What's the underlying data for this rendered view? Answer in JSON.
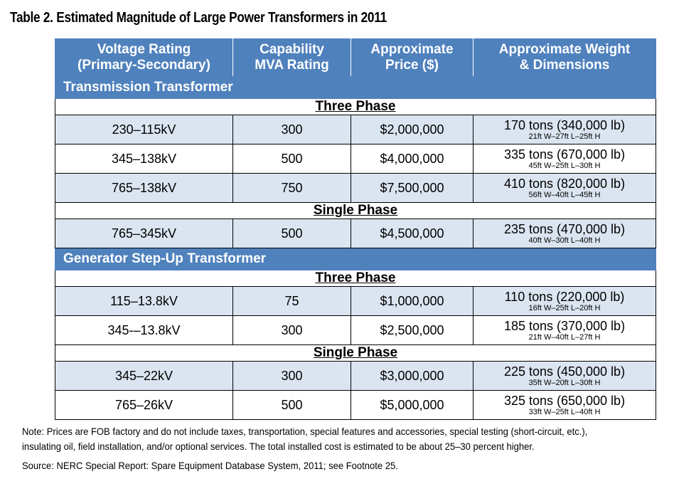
{
  "title": "Table 2. Estimated Magnitude of Large Power Transformers in 2011",
  "columns": [
    {
      "line1": "Voltage Rating",
      "line2": "(Primary-Secondary)"
    },
    {
      "line1": "Capability",
      "line2": "MVA Rating"
    },
    {
      "line1": "Approximate",
      "line2": "Price ($)"
    },
    {
      "line1": "Approximate Weight",
      "line2": "& Dimensions"
    }
  ],
  "sections": [
    {
      "name": "Transmission Transformer",
      "groups": [
        {
          "phase": "Three Phase",
          "rows": [
            {
              "voltage": "230–115kV",
              "mva": "300",
              "price": "$2,000,000",
              "weight": "170 tons (340,000 lb)",
              "dims": "21ft W–27ft L–25ft H"
            },
            {
              "voltage": "345–138kV",
              "mva": "500",
              "price": "$4,000,000",
              "weight": "335 tons (670,000 lb)",
              "dims": "45ft W–25ft L–30ft H"
            },
            {
              "voltage": "765–138kV",
              "mva": "750",
              "price": "$7,500,000",
              "weight": "410 tons (820,000 lb)",
              "dims": "56ft W–40ft L–45ft H"
            }
          ]
        },
        {
          "phase": "Single Phase",
          "rows": [
            {
              "voltage": "765–345kV",
              "mva": "500",
              "price": "$4,500,000",
              "weight": "235 tons (470,000 lb)",
              "dims": "40ft W–30ft L–40ft H"
            }
          ]
        }
      ]
    },
    {
      "name": "Generator Step-Up Transformer",
      "groups": [
        {
          "phase": "Three Phase",
          "rows": [
            {
              "voltage": "115–13.8kV",
              "mva": "75",
              "price": "$1,000,000",
              "weight": "110 tons (220,000 lb)",
              "dims": "16ft W–25ft L–20ft H"
            },
            {
              "voltage": "345-–13.8kV",
              "mva": "300",
              "price": "$2,500,000",
              "weight": "185 tons (370,000 lb)",
              "dims": "21ft W–40ft L–27ft H"
            }
          ]
        },
        {
          "phase": "Single Phase",
          "rows": [
            {
              "voltage": "345–22kV",
              "mva": "300",
              "price": "$3,000,000",
              "weight": "225 tons (450,000 lb)",
              "dims": "35ft W–20ft L–30ft H"
            },
            {
              "voltage": "765–26kV",
              "mva": "500",
              "price": "$5,000,000",
              "weight": "325 tons (650,000 lb)",
              "dims": "33ft W–25ft L–40ft H"
            }
          ]
        }
      ]
    }
  ],
  "note": "Note: Prices are FOB factory and do not include taxes, transportation, special features and accessories, special testing (short-circuit, etc.), insulating oil, field installation, and/or optional services. The total installed cost is estimated to be about 25–30 percent higher.",
  "source": "Source: NERC Special Report: Spare Equipment Database System, 2011; see Footnote 25.",
  "colors": {
    "header_blue": "#4f81bd",
    "row_light_blue": "#dbe5f1"
  }
}
